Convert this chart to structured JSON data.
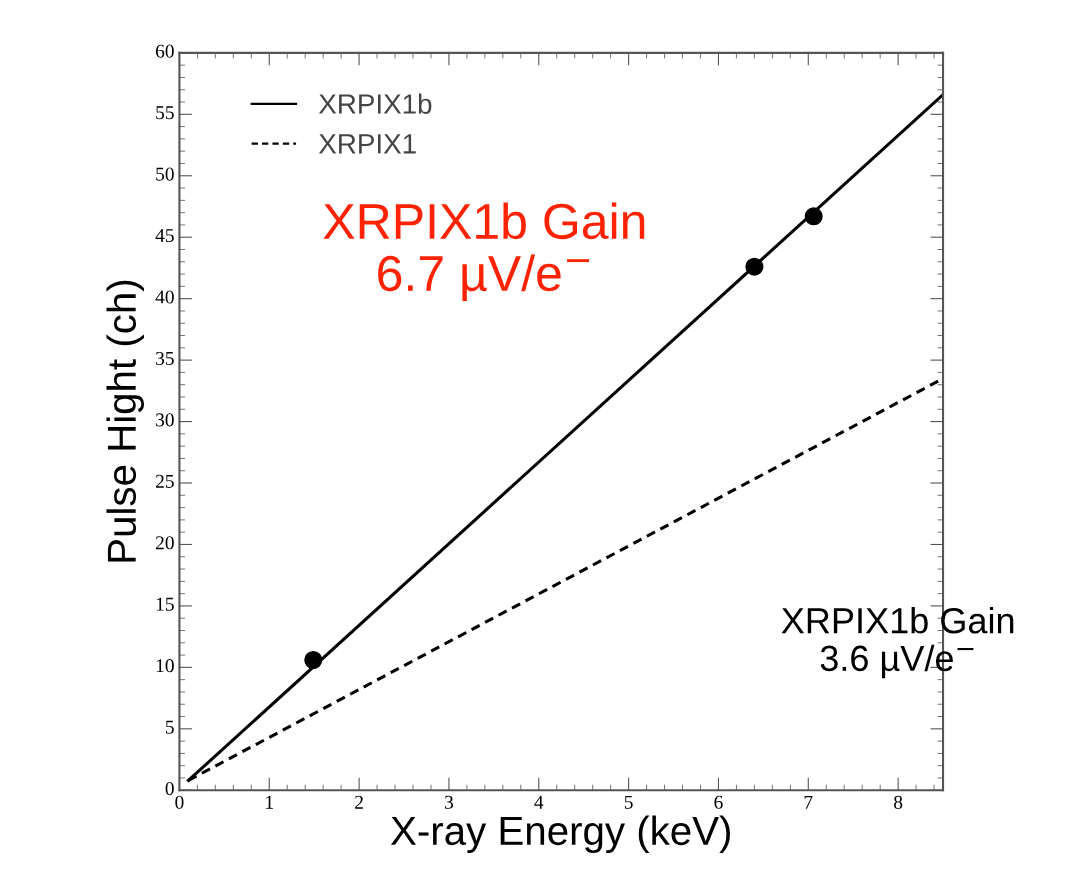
{
  "chart_data": {
    "type": "line",
    "xlabel": "X-ray Energy (keV)",
    "ylabel": "Pulse Hight (ch)",
    "xlim": [
      0,
      8.5
    ],
    "ylim": [
      0,
      60
    ],
    "xticks": [
      0,
      1,
      2,
      3,
      4,
      5,
      6,
      7,
      8
    ],
    "yticks": [
      0,
      5,
      10,
      15,
      20,
      25,
      30,
      35,
      40,
      45,
      50,
      55,
      60
    ],
    "series": [
      {
        "name": "XRPIX1b",
        "line_style": "solid",
        "color": "#000000",
        "x": [
          0.1,
          8.5
        ],
        "values": [
          0.8,
          56.6
        ]
      },
      {
        "name": "XRPIX1",
        "line_style": "dashed",
        "color": "#000000",
        "x": [
          0.1,
          8.5
        ],
        "values": [
          0.8,
          33.5
        ]
      },
      {
        "type": "scatter",
        "marker": "circle",
        "color": "#000000",
        "x": [
          1.49,
          6.4,
          7.06
        ],
        "values": [
          10.6,
          42.6,
          46.7
        ]
      }
    ],
    "legend": "top left",
    "grid": false,
    "annotations": [
      "XRPIX1b Gain\n6.7 µV/e$^{−}$",
      "XRPIX1b Gain\n3.6 µV/e$^{−}$"
    ]
  }
}
